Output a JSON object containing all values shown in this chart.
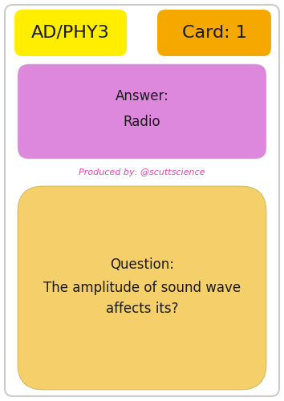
{
  "card_bg": "#ffffff",
  "header_left_text": "AD/PHY3",
  "header_left_color": "#ffee00",
  "header_right_text": "Card: 1",
  "header_right_color": "#f5a800",
  "answer_box_color": "#dd88dd",
  "answer_label": "Answer:",
  "answer_text": "Radio",
  "credit_text": "Produced by: @scuttscience",
  "credit_color": "#ee44aa",
  "question_box_color": "#f5d06a",
  "question_label": "Question:",
  "question_text": "The amplitude of sound wave\naffects its?",
  "text_color": "#1a1a1a",
  "border_color": "#cccccc"
}
